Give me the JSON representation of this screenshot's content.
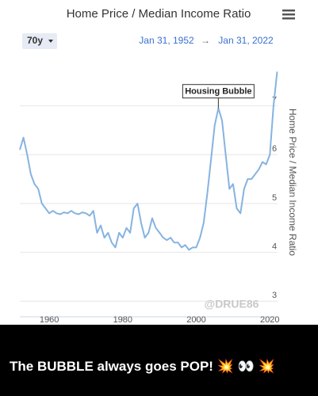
{
  "chart_data": {
    "type": "line",
    "title": "Home Price / Median Income Ratio",
    "range_button": "70y",
    "date_start": "Jan 31, 1952",
    "date_separator": "→",
    "date_end": "Jan 31, 2022",
    "y_axis_label": "Home Price / Median Income Ratio",
    "x": [
      1952,
      1953,
      1954,
      1955,
      1956,
      1957,
      1958,
      1959,
      1960,
      1961,
      1962,
      1963,
      1964,
      1965,
      1966,
      1967,
      1968,
      1969,
      1970,
      1971,
      1972,
      1973,
      1974,
      1975,
      1976,
      1977,
      1978,
      1979,
      1980,
      1981,
      1982,
      1983,
      1984,
      1985,
      1986,
      1987,
      1988,
      1989,
      1990,
      1991,
      1992,
      1993,
      1994,
      1995,
      1996,
      1997,
      1998,
      1999,
      2000,
      2001,
      2002,
      2003,
      2004,
      2005,
      2006,
      2007,
      2008,
      2009,
      2010,
      2011,
      2012,
      2013,
      2014,
      2015,
      2016,
      2017,
      2018,
      2019,
      2020,
      2021,
      2022
    ],
    "series": [
      {
        "name": "Home Price / Median Income Ratio",
        "color": "#86b3e0",
        "values": [
          6.1,
          6.35,
          6.0,
          5.6,
          5.4,
          5.3,
          5.0,
          4.9,
          4.8,
          4.85,
          4.8,
          4.78,
          4.82,
          4.8,
          4.85,
          4.8,
          4.78,
          4.82,
          4.8,
          4.75,
          4.85,
          4.4,
          4.55,
          4.3,
          4.4,
          4.2,
          4.1,
          4.4,
          4.3,
          4.5,
          4.4,
          4.9,
          5.0,
          4.6,
          4.3,
          4.4,
          4.7,
          4.5,
          4.4,
          4.3,
          4.25,
          4.3,
          4.2,
          4.2,
          4.1,
          4.15,
          4.05,
          4.1,
          4.1,
          4.3,
          4.6,
          5.2,
          5.9,
          6.6,
          6.95,
          6.7,
          6.0,
          5.3,
          5.4,
          4.9,
          4.8,
          5.3,
          5.5,
          5.5,
          5.6,
          5.7,
          5.85,
          5.8,
          6.0,
          7.0,
          7.7
        ]
      }
    ],
    "xlim": [
      1952,
      2022.1
    ],
    "xticks": [
      1960,
      1980,
      2000,
      2020
    ],
    "ylim": [
      2.68,
      7.87
    ],
    "yticks": [
      3,
      4,
      5,
      6,
      7
    ],
    "grid": true,
    "annotations": [
      {
        "text": "Housing Bubble",
        "x": 2006,
        "y": 6.95
      }
    ],
    "watermark": "@DRUE86"
  },
  "caption": "The BUBBLE always goes POP! 💥 👀 💥"
}
